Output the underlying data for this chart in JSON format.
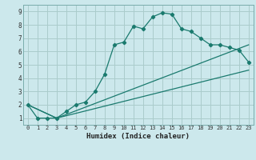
{
  "xlabel": "Humidex (Indice chaleur)",
  "background_color": "#cce8ec",
  "grid_color": "#aacccc",
  "line_color": "#1a7a6e",
  "xlim": [
    -0.5,
    23.5
  ],
  "ylim": [
    0.5,
    9.5
  ],
  "xticks": [
    0,
    1,
    2,
    3,
    4,
    5,
    6,
    7,
    8,
    9,
    10,
    11,
    12,
    13,
    14,
    15,
    16,
    17,
    18,
    19,
    20,
    21,
    22,
    23
  ],
  "yticks": [
    1,
    2,
    3,
    4,
    5,
    6,
    7,
    8,
    9
  ],
  "line1_x": [
    0,
    1,
    2,
    3,
    4,
    5,
    6,
    7,
    8,
    9,
    10,
    11,
    12,
    13,
    14,
    15,
    16,
    17,
    18,
    19,
    20,
    21,
    22,
    23
  ],
  "line1_y": [
    2.0,
    1.0,
    1.0,
    1.0,
    1.5,
    2.0,
    2.2,
    3.0,
    4.3,
    6.5,
    6.7,
    7.9,
    7.7,
    8.6,
    8.9,
    8.8,
    7.7,
    7.5,
    7.0,
    6.5,
    6.5,
    6.3,
    6.1,
    5.2
  ],
  "line2_x": [
    0,
    3,
    23
  ],
  "line2_y": [
    2.0,
    1.0,
    6.5
  ],
  "line3_x": [
    0,
    3,
    23
  ],
  "line3_y": [
    2.0,
    1.0,
    4.6
  ]
}
